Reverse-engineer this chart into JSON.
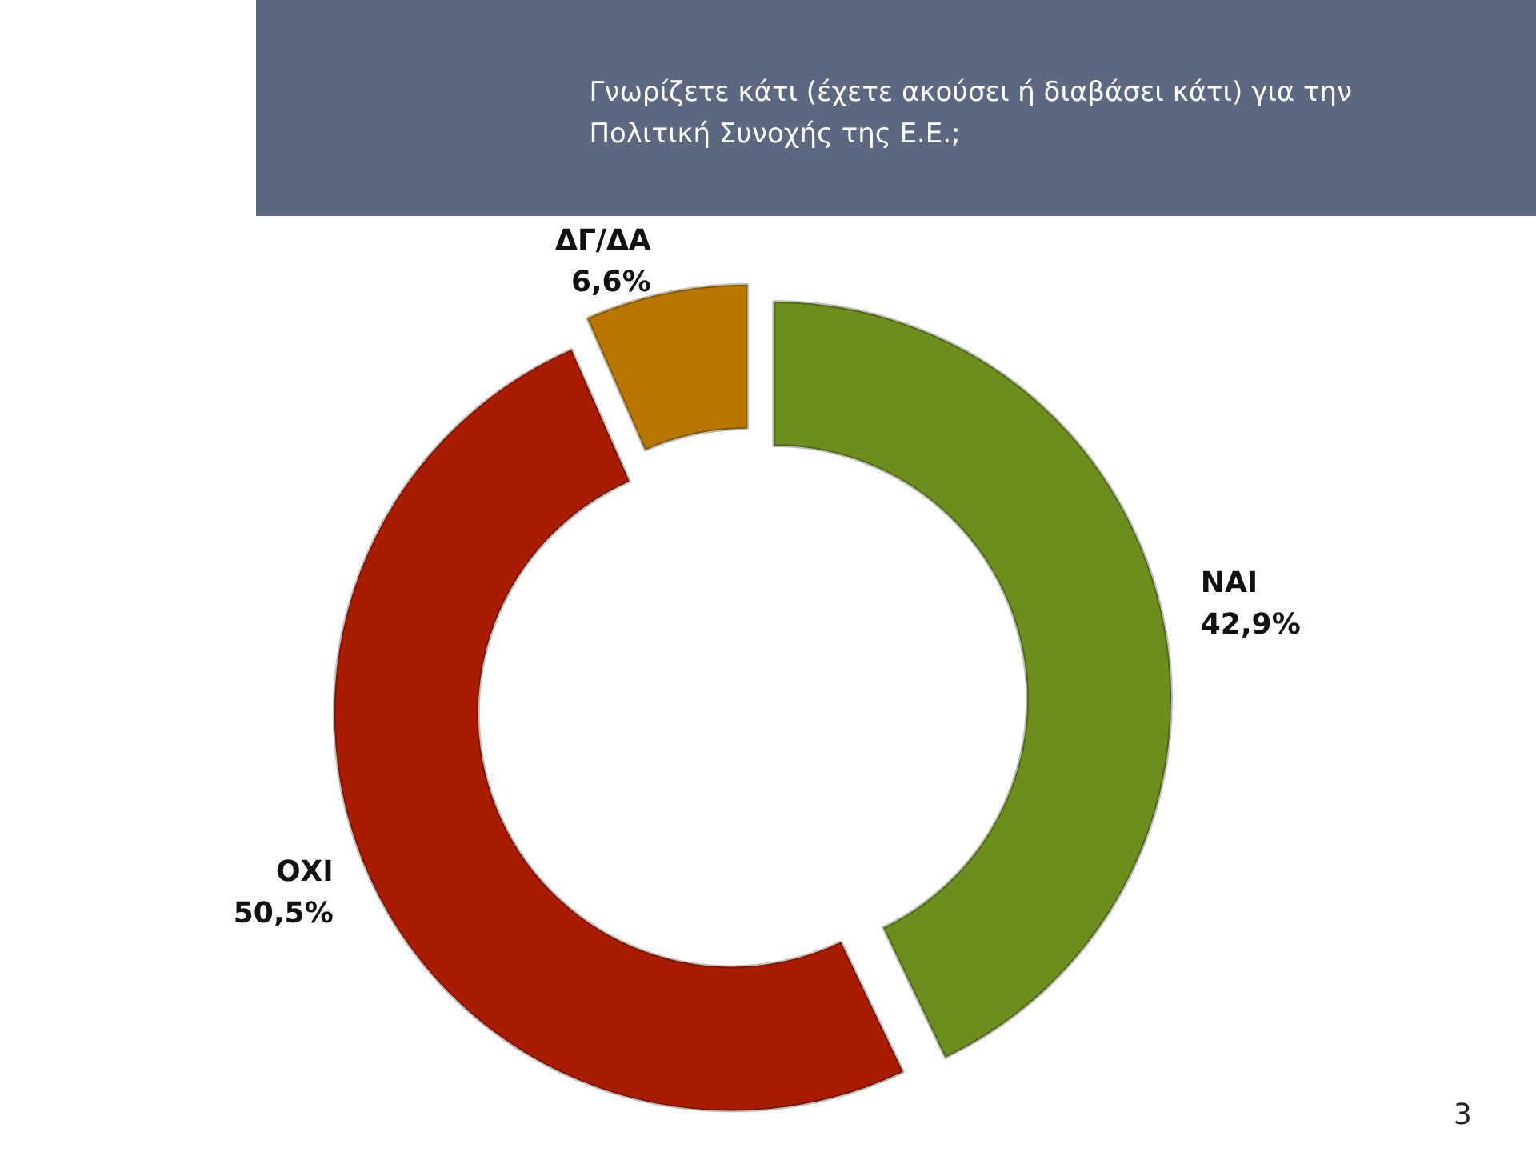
{
  "chart_data": {
    "type": "donut",
    "title": "Γνωρίζετε κάτι (έχετε ακούσει ή διαβάσει κάτι) για την\nΠολιτική Συνοχής της Ε.Ε.;",
    "categories": [
      "ΝΑΙ",
      "ΟΧΙ",
      "ΔΓ/ΔΑ"
    ],
    "values": [
      42.9,
      50.5,
      6.6
    ],
    "value_labels": [
      "42,9%",
      "50,5%",
      "6,6%"
    ],
    "colors": [
      "#6b8e1e",
      "#aa1c00",
      "#b87800"
    ],
    "annotations": [
      "3"
    ],
    "legend": false
  }
}
